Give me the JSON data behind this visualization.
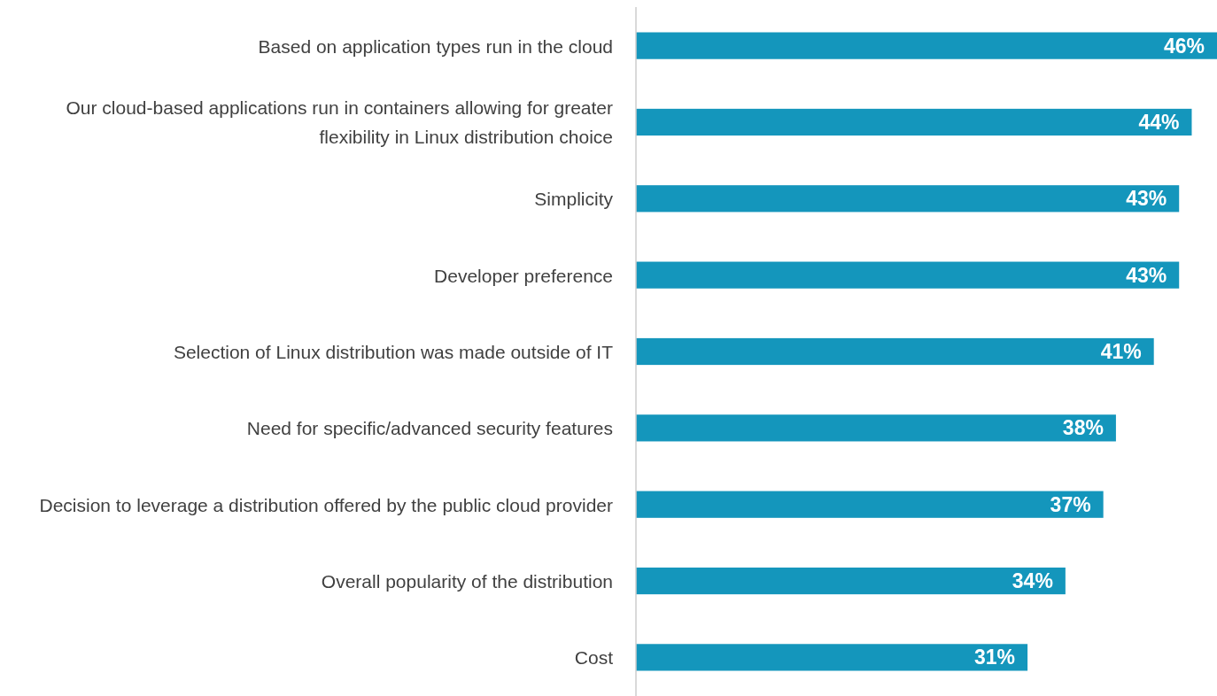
{
  "chart_data": {
    "type": "bar",
    "orientation": "horizontal",
    "relative": false,
    "categories": [
      "Based on application types run in the cloud",
      "Our cloud-based applications run in containers allowing for greater flexibility in Linux distribution choice",
      "Simplicity",
      "Developer preference",
      "Selection of Linux distribution was made outside of IT",
      "Need for specific/advanced security features",
      "Decision to leverage a distribution offered by the public cloud provider",
      "Overall popularity of the distribution",
      "Cost"
    ],
    "values": [
      46,
      44,
      43,
      43,
      41,
      38,
      37,
      34,
      31
    ],
    "value_labels": [
      "46%",
      "44%",
      "43%",
      "43%",
      "41%",
      "38%",
      "37%",
      "34%",
      "31%"
    ],
    "color": "#1496bc"
  }
}
